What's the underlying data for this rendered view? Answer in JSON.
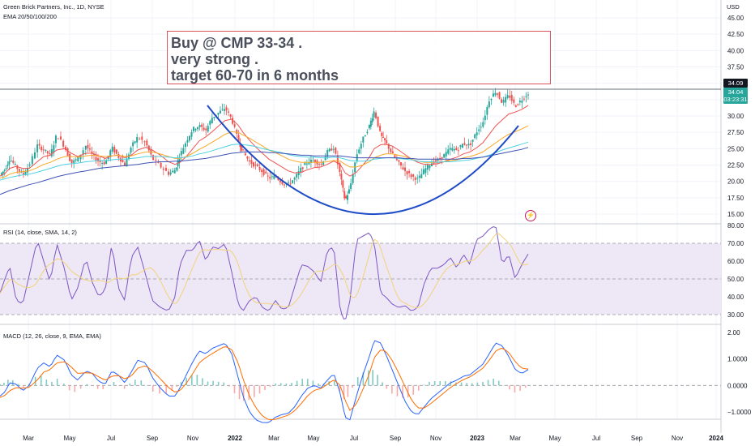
{
  "header": {
    "symbol_line": "Green Brick Partners, Inc., 1D, NYSE",
    "ema_label": "EMA 20/50/100/200",
    "rsi_label": "RSI (14, close, SMA, 14, 2)",
    "macd_label": "MACD (12, 26, close, 9, EMA, EMA)"
  },
  "note": {
    "line1": "Buy @ CMP 33-34 .",
    "line2": "very strong .",
    "line3": "target 60-70 in 6 months"
  },
  "price_tags": {
    "last_close": "34.09",
    "current": "34.04",
    "countdown": "03:23:31",
    "currency": "USD"
  },
  "colors": {
    "up": "#26a69a",
    "down": "#ef5350",
    "rsi_line": "#7e57c2",
    "rsi_ma": "#f3d37a",
    "macd_line": "#2962ff",
    "signal_line": "#ff6d00",
    "cup_line": "#1e4bc7",
    "annotation_border": "#d9545c"
  },
  "chart_data": {
    "type": "line",
    "price_axis": {
      "ticks": [
        "45.00",
        "42.50",
        "40.00",
        "37.50",
        "35.00",
        "32.50",
        "30.00",
        "27.50",
        "25.00",
        "22.50",
        "20.00",
        "17.50",
        "15.00"
      ],
      "ylim": [
        13.5,
        47
      ]
    },
    "rsi_axis": {
      "ticks": [
        "80.00",
        "70.00",
        "60.00",
        "50.00",
        "40.00",
        "30.00"
      ],
      "ylim": [
        22,
        84
      ],
      "levels": [
        70,
        50,
        30
      ]
    },
    "macd_axis": {
      "ticks": [
        "2.00",
        "1.0000",
        "0.0000",
        "−1.0000"
      ],
      "ylim": [
        -1.7,
        2.2
      ]
    },
    "time_labels": [
      "Mar",
      "May",
      "Jul",
      "Sep",
      "Nov",
      "2022",
      "Mar",
      "May",
      "Jul",
      "Sep",
      "Nov",
      "2023",
      "Mar",
      "May",
      "Jul",
      "Sep",
      "Nov",
      "2024"
    ],
    "resistance_level": 34.09,
    "price": {
      "x": [
        0,
        6,
        12,
        20,
        28,
        36,
        46,
        54,
        62,
        70,
        80,
        88,
        96,
        106,
        114,
        122,
        130,
        138,
        146,
        154,
        162,
        170,
        180,
        188,
        198,
        208,
        216,
        222,
        230,
        238,
        246,
        254,
        262,
        270,
        278,
        286,
        294,
        300,
        308,
        316,
        324,
        332,
        340,
        348,
        356,
        364,
        372,
        380,
        388,
        396,
        404,
        412,
        420,
        426,
        432,
        440,
        448,
        456,
        462,
        470,
        476,
        484,
        492,
        500,
        508,
        516,
        524,
        532,
        540,
        548,
        556,
        564,
        572,
        580,
        588,
        596,
        604,
        612,
        620,
        628,
        636,
        644,
        652
      ],
      "values": [
        21.0,
        21.8,
        23.5,
        22.2,
        21.0,
        22.5,
        25.5,
        24.8,
        24.0,
        27.2,
        25.2,
        22.8,
        23.5,
        25.5,
        24.0,
        23.0,
        22.8,
        25.2,
        23.8,
        22.5,
        25.3,
        26.8,
        25.8,
        23.5,
        22.3,
        21.2,
        21.7,
        24.0,
        26.2,
        28.0,
        28.5,
        27.8,
        29.8,
        30.5,
        31.2,
        29.5,
        26.3,
        24.5,
        23.0,
        22.3,
        21.5,
        20.5,
        20.8,
        19.8,
        19.6,
        20.5,
        22.0,
        23.0,
        23.2,
        22.5,
        24.5,
        25.2,
        21.0,
        17.0,
        19.0,
        24.0,
        26.5,
        28.5,
        30.8,
        27.0,
        26.0,
        24.2,
        22.8,
        21.6,
        20.8,
        20.3,
        21.8,
        22.8,
        23.2,
        24.0,
        25.0,
        24.8,
        25.8,
        25.5,
        27.5,
        29.0,
        32.5,
        33.8,
        32.0,
        33.2,
        31.5,
        32.5,
        33.5
      ]
    },
    "ema_series": [
      {
        "color": "#ef5350",
        "values": [
          20.8,
          21.2,
          22.0,
          22.3,
          22.0,
          22.0,
          23.0,
          23.8,
          24.0,
          24.8,
          25.0,
          24.3,
          23.8,
          24.3,
          24.3,
          23.9,
          23.5,
          23.9,
          24.0,
          23.6,
          24.0,
          24.8,
          25.2,
          24.8,
          24.0,
          23.0,
          22.6,
          22.9,
          23.8,
          25.0,
          26.2,
          26.8,
          27.6,
          28.5,
          29.3,
          29.5,
          28.6,
          27.5,
          26.3,
          25.2,
          24.3,
          23.4,
          22.8,
          22.2,
          21.6,
          21.3,
          21.4,
          21.8,
          22.1,
          22.2,
          22.6,
          23.1,
          22.6,
          21.3,
          20.8,
          21.4,
          22.5,
          23.7,
          25.0,
          25.6,
          25.7,
          25.4,
          24.8,
          24.1,
          23.4,
          22.9,
          22.6,
          22.6,
          22.7,
          23.0,
          23.4,
          23.7,
          24.2,
          24.5,
          25.1,
          25.9,
          27.2,
          28.5,
          29.4,
          30.3,
          30.6,
          31.0,
          31.6
        ]
      },
      {
        "color": "#f9a825",
        "values": [
          20.5,
          20.7,
          21.1,
          21.4,
          21.5,
          21.6,
          22.1,
          22.6,
          22.9,
          23.4,
          23.8,
          23.8,
          23.7,
          23.9,
          24.0,
          23.9,
          23.8,
          23.9,
          24.0,
          23.8,
          23.9,
          24.2,
          24.5,
          24.5,
          24.2,
          23.8,
          23.5,
          23.5,
          23.8,
          24.3,
          24.9,
          25.4,
          26.0,
          26.6,
          27.2,
          27.6,
          27.5,
          27.1,
          26.6,
          26.0,
          25.4,
          24.8,
          24.4,
          23.9,
          23.4,
          23.1,
          22.9,
          22.9,
          22.9,
          22.9,
          23.0,
          23.2,
          23.1,
          22.6,
          22.2,
          22.2,
          22.5,
          23.0,
          23.6,
          24.0,
          24.2,
          24.2,
          24.0,
          23.8,
          23.4,
          23.1,
          22.9,
          22.9,
          22.9,
          23.0,
          23.2,
          23.3,
          23.6,
          23.8,
          24.1,
          24.5,
          25.2,
          25.9,
          26.6,
          27.2,
          27.6,
          28.0,
          28.5
        ]
      },
      {
        "color": "#4dd0e1",
        "values": [
          20.2,
          20.4,
          20.6,
          20.8,
          21.0,
          21.1,
          21.4,
          21.7,
          22.0,
          22.3,
          22.6,
          22.7,
          22.8,
          23.0,
          23.1,
          23.2,
          23.2,
          23.3,
          23.4,
          23.4,
          23.5,
          23.6,
          23.8,
          23.8,
          23.8,
          23.7,
          23.6,
          23.6,
          23.7,
          23.9,
          24.2,
          24.4,
          24.7,
          25.0,
          25.3,
          25.6,
          25.7,
          25.6,
          25.5,
          25.3,
          25.0,
          24.8,
          24.6,
          24.4,
          24.1,
          23.9,
          23.8,
          23.7,
          23.7,
          23.6,
          23.6,
          23.7,
          23.6,
          23.4,
          23.2,
          23.1,
          23.1,
          23.2,
          23.4,
          23.5,
          23.6,
          23.6,
          23.5,
          23.4,
          23.3,
          23.1,
          23.0,
          23.0,
          22.9,
          23.0,
          23.0,
          23.1,
          23.2,
          23.3,
          23.5,
          23.7,
          24.0,
          24.4,
          24.8,
          25.1,
          25.4,
          25.7,
          26.0
        ]
      },
      {
        "color": "#3f51b5",
        "values": [
          18.0,
          18.3,
          18.6,
          18.9,
          19.2,
          19.5,
          19.8,
          20.1,
          20.4,
          20.7,
          21.0,
          21.2,
          21.4,
          21.6,
          21.8,
          22.0,
          22.1,
          22.2,
          22.3,
          22.4,
          22.5,
          22.6,
          22.8,
          22.9,
          23.0,
          23.0,
          23.1,
          23.1,
          23.2,
          23.3,
          23.4,
          23.5,
          23.7,
          23.9,
          24.1,
          24.3,
          24.4,
          24.5,
          24.5,
          24.5,
          24.5,
          24.4,
          24.4,
          24.3,
          24.2,
          24.1,
          24.0,
          24.0,
          23.9,
          23.9,
          23.9,
          23.9,
          23.9,
          23.8,
          23.7,
          23.6,
          23.6,
          23.6,
          23.6,
          23.6,
          23.6,
          23.6,
          23.6,
          23.5,
          23.5,
          23.4,
          23.4,
          23.4,
          23.4,
          23.4,
          23.4,
          23.4,
          23.5,
          23.5,
          23.6,
          23.7,
          23.9,
          24.1,
          24.3,
          24.5,
          24.7,
          24.9,
          25.2
        ]
      }
    ],
    "rsi": {
      "values": [
        42,
        50,
        57,
        38,
        36,
        52,
        72,
        60,
        48,
        70,
        55,
        38,
        45,
        62,
        48,
        40,
        44,
        70,
        45,
        38,
        62,
        68,
        52,
        38,
        34,
        32,
        40,
        58,
        66,
        66,
        72,
        60,
        68,
        67,
        70,
        54,
        36,
        32,
        38,
        40,
        34,
        32,
        38,
        33,
        34,
        46,
        58,
        57,
        54,
        48,
        66,
        68,
        32,
        26,
        38,
        72,
        74,
        76,
        70,
        42,
        40,
        36,
        34,
        35,
        32,
        34,
        48,
        56,
        56,
        58,
        62,
        56,
        64,
        58,
        72,
        74,
        78,
        80,
        58,
        64,
        50,
        58,
        64
      ]
    },
    "macd": {
      "macd_line": [
        -0.4,
        -0.25,
        0.1,
        0.05,
        -0.2,
        0.0,
        0.65,
        0.85,
        0.7,
        1.15,
        0.95,
        0.4,
        0.2,
        0.55,
        0.45,
        0.15,
        0.05,
        0.55,
        0.4,
        0.1,
        0.5,
        0.95,
        0.85,
        0.3,
        -0.1,
        -0.4,
        -0.4,
        -0.1,
        0.4,
        0.9,
        1.3,
        1.2,
        1.4,
        1.5,
        1.6,
        1.2,
        0.3,
        -0.4,
        -1.0,
        -1.3,
        -1.4,
        -1.4,
        -1.2,
        -1.1,
        -1.05,
        -0.8,
        -0.4,
        -0.1,
        0.0,
        -0.1,
        0.2,
        0.45,
        -0.3,
        -1.2,
        -1.3,
        -0.4,
        0.4,
        1.1,
        1.7,
        1.6,
        1.2,
        0.6,
        0.0,
        -0.6,
        -1.0,
        -1.1,
        -0.8,
        -0.5,
        -0.3,
        -0.1,
        0.1,
        0.2,
        0.35,
        0.4,
        0.6,
        0.8,
        1.2,
        1.6,
        1.5,
        1.1,
        0.6,
        0.45,
        0.6
      ],
      "signal_line": [
        -0.45,
        -0.38,
        -0.2,
        -0.08,
        -0.1,
        -0.07,
        0.2,
        0.5,
        0.6,
        0.85,
        0.9,
        0.7,
        0.45,
        0.48,
        0.46,
        0.32,
        0.2,
        0.35,
        0.38,
        0.25,
        0.35,
        0.65,
        0.75,
        0.55,
        0.25,
        -0.08,
        -0.25,
        -0.2,
        0.08,
        0.45,
        0.85,
        1.05,
        1.2,
        1.35,
        1.48,
        1.35,
        0.85,
        0.25,
        -0.4,
        -0.85,
        -1.15,
        -1.3,
        -1.28,
        -1.2,
        -1.12,
        -0.95,
        -0.68,
        -0.38,
        -0.18,
        -0.12,
        0.04,
        0.22,
        0.0,
        -0.55,
        -0.95,
        -0.7,
        -0.15,
        0.45,
        1.05,
        1.35,
        1.3,
        0.95,
        0.48,
        -0.05,
        -0.55,
        -0.85,
        -0.85,
        -0.68,
        -0.48,
        -0.28,
        -0.08,
        0.08,
        0.22,
        0.32,
        0.48,
        0.65,
        0.95,
        1.3,
        1.42,
        1.25,
        0.9,
        0.65,
        0.62
      ]
    }
  }
}
